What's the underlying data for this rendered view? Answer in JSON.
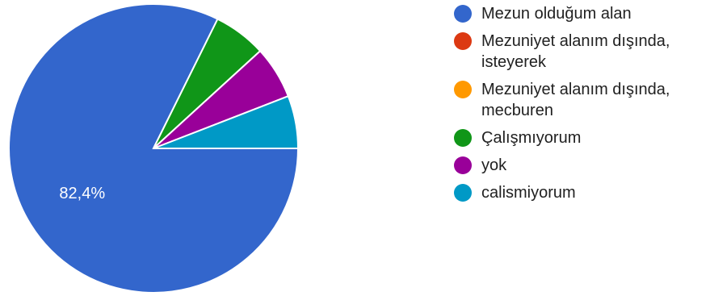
{
  "chart_data": {
    "type": "pie",
    "title": "",
    "categories": [
      "Mezun olduğum alan",
      "Mezuniyet alanım dışında, isteyerek",
      "Mezuniyet alanım dışında, mecburen",
      "Çalışmıyorum",
      "yok",
      "calismiyorum"
    ],
    "values": [
      82.4,
      0,
      0,
      5.9,
      5.9,
      5.9
    ],
    "colors": [
      "#3366cc",
      "#dc3912",
      "#ff9900",
      "#109618",
      "#990099",
      "#0099c6"
    ],
    "data_labels": [
      "82,4%",
      "",
      "",
      "",
      "",
      ""
    ],
    "legend_position": "right"
  }
}
